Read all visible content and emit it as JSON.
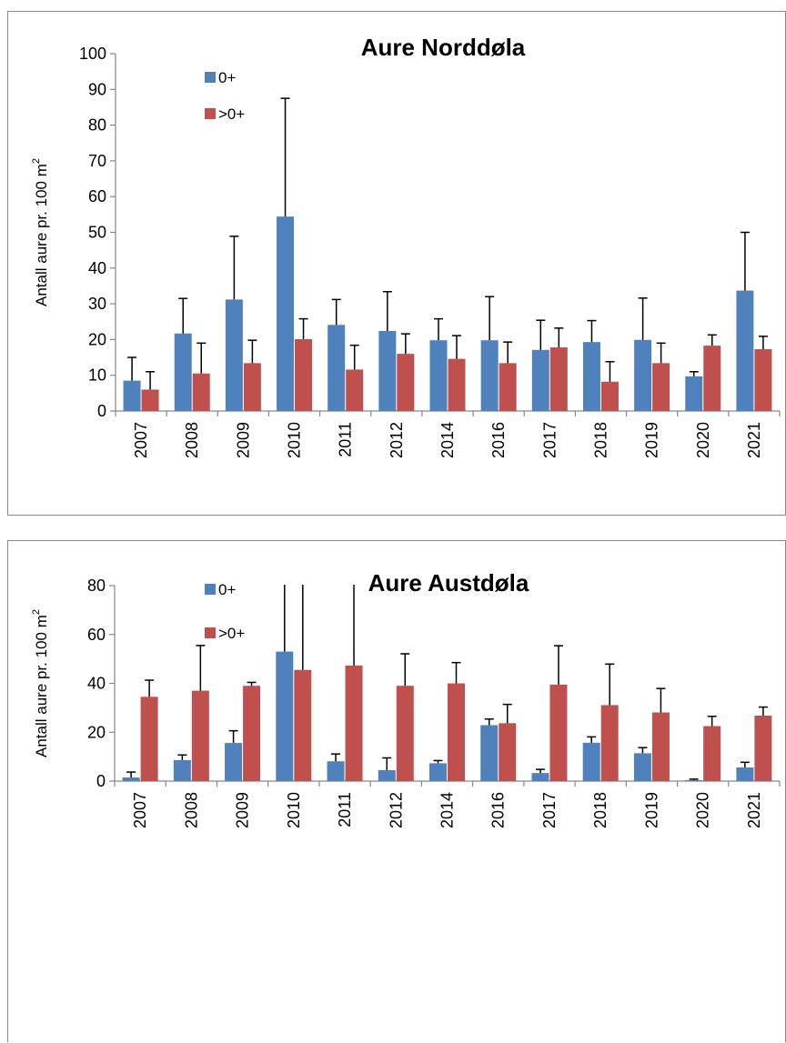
{
  "chart_data": [
    {
      "type": "bar",
      "title": "Aure Norddøla",
      "ylabel": "Antall aure pr. 100 m",
      "ylabel_sup": "2",
      "categories": [
        "2007",
        "2008",
        "2009",
        "2010",
        "2011",
        "2012",
        "2014",
        "2016",
        "2017",
        "2018",
        "2019",
        "2020",
        "2021"
      ],
      "ylim": [
        0,
        100
      ],
      "yticks": [
        0,
        10,
        20,
        30,
        40,
        50,
        60,
        70,
        80,
        90,
        100
      ],
      "legend_position": "top-left",
      "series": [
        {
          "name": "0+",
          "color": "#4F81BD",
          "values": [
            8.5,
            21.7,
            31.2,
            54.4,
            24.1,
            22.4,
            19.8,
            19.8,
            17.1,
            19.3,
            19.9,
            9.7,
            33.7
          ],
          "error": [
            6.5,
            9.8,
            17.7,
            33.1,
            7.1,
            11.0,
            6.0,
            12.2,
            8.3,
            6.0,
            11.7,
            1.3,
            16.3
          ]
        },
        {
          "name": ">0+",
          "color": "#C0504D",
          "values": [
            6.0,
            10.5,
            13.4,
            20.1,
            11.6,
            16.0,
            14.6,
            13.4,
            17.8,
            8.2,
            13.4,
            18.3,
            17.3
          ],
          "error": [
            5.0,
            8.5,
            6.4,
            5.7,
            6.8,
            5.6,
            6.5,
            5.9,
            5.4,
            5.6,
            5.6,
            3.0,
            3.6
          ]
        }
      ]
    },
    {
      "type": "bar",
      "title": "Aure Austdøla",
      "ylabel": "Antall aure pr. 100 m",
      "ylabel_sup": "2",
      "categories": [
        "2007",
        "2008",
        "2009",
        "2010",
        "2011",
        "2012",
        "2014",
        "2016",
        "2017",
        "2018",
        "2019",
        "2020",
        "2021"
      ],
      "ylim": [
        0,
        80
      ],
      "yticks": [
        0,
        20,
        40,
        60,
        80
      ],
      "legend_position": "top-left",
      "series": [
        {
          "name": "0+",
          "color": "#4F81BD",
          "values": [
            1.5,
            8.6,
            15.6,
            53.0,
            8.1,
            4.5,
            7.3,
            22.9,
            3.3,
            15.7,
            11.4,
            0.4,
            5.6
          ],
          "error": [
            2.2,
            2.1,
            5.0,
            40.0,
            3.0,
            5.0,
            1.1,
            2.5,
            1.5,
            2.4,
            2.3,
            0.4,
            2.1
          ]
        },
        {
          "name": ">0+",
          "color": "#C0504D",
          "values": [
            34.5,
            37.0,
            39.0,
            45.5,
            47.3,
            39.0,
            40.0,
            23.7,
            39.5,
            31.1,
            28.1,
            22.5,
            26.8
          ],
          "error": [
            6.8,
            18.5,
            1.4,
            40.0,
            40.0,
            13.1,
            8.5,
            7.7,
            15.9,
            16.8,
            9.8,
            4.0,
            3.5
          ]
        }
      ]
    }
  ]
}
